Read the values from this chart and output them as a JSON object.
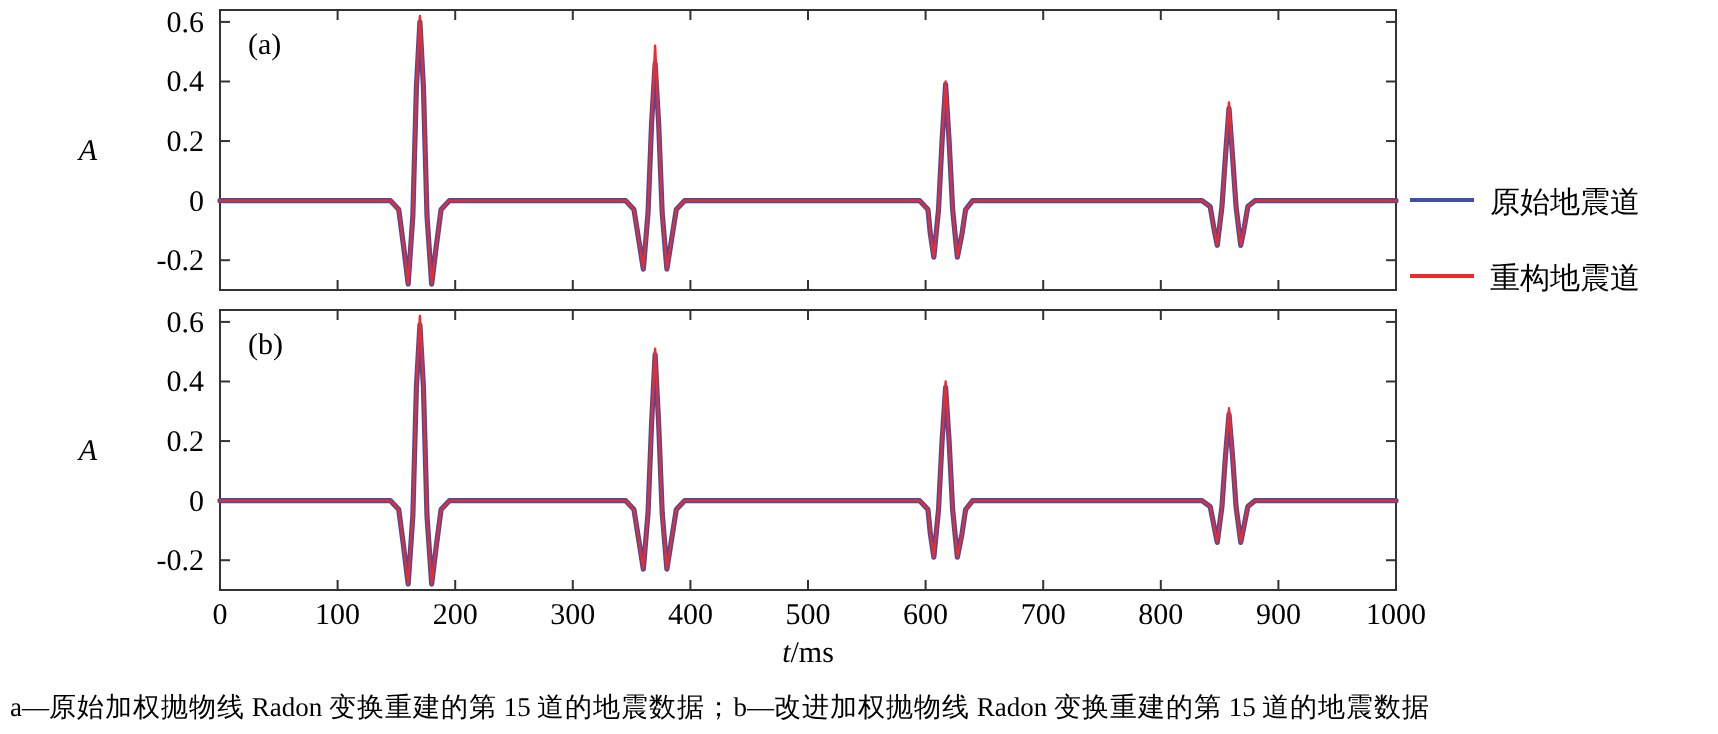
{
  "chart_data": [
    {
      "type": "line",
      "title": "(a)",
      "ylabel": "*A*",
      "legend": "right",
      "tick_labels": "y",
      "x": [
        0,
        145,
        152,
        156,
        160,
        164,
        167,
        170,
        173,
        176,
        180,
        184,
        188,
        195,
        345,
        352,
        356,
        360,
        364,
        367,
        370,
        373,
        376,
        380,
        384,
        388,
        395,
        595,
        602,
        604,
        607,
        611,
        614,
        617,
        620,
        623,
        627,
        631,
        634,
        640,
        835,
        842,
        845,
        848,
        852,
        855,
        858,
        861,
        864,
        868,
        871,
        874,
        880,
        1000
      ],
      "xlim": [
        0,
        1000
      ],
      "xticks": [
        0,
        100,
        200,
        300,
        400,
        500,
        600,
        700,
        800,
        900,
        1000
      ],
      "ylim": [
        -0.3,
        0.64
      ],
      "yticks": [
        -0.2,
        0,
        0.2,
        0.4,
        0.6
      ],
      "series": [
        {
          "name": "原始地震道",
          "color": "#3f4fa8",
          "values": [
            0,
            0,
            -0.03,
            -0.15,
            -0.28,
            -0.05,
            0.38,
            0.6,
            0.38,
            -0.05,
            -0.28,
            -0.15,
            -0.03,
            0,
            0,
            -0.03,
            -0.13,
            -0.23,
            -0.04,
            0.26,
            0.46,
            0.26,
            -0.04,
            -0.23,
            -0.13,
            -0.03,
            0,
            0,
            -0.03,
            -0.11,
            -0.19,
            -0.03,
            0.2,
            0.39,
            0.2,
            -0.03,
            -0.19,
            -0.11,
            -0.03,
            0,
            0,
            -0.02,
            -0.09,
            -0.15,
            -0.02,
            0.15,
            0.31,
            0.15,
            -0.02,
            -0.15,
            -0.09,
            -0.02,
            0,
            0
          ]
        },
        {
          "name": "重构地震道",
          "color": "#ee2a2a",
          "values": [
            0,
            0,
            -0.03,
            -0.15,
            -0.28,
            -0.05,
            0.38,
            0.62,
            0.38,
            -0.05,
            -0.28,
            -0.15,
            -0.03,
            0,
            0,
            -0.03,
            -0.13,
            -0.23,
            -0.04,
            0.26,
            0.52,
            0.26,
            -0.04,
            -0.23,
            -0.13,
            -0.03,
            0,
            0,
            -0.03,
            -0.11,
            -0.19,
            -0.03,
            0.2,
            0.4,
            0.2,
            -0.03,
            -0.19,
            -0.11,
            -0.03,
            0,
            0,
            -0.02,
            -0.09,
            -0.15,
            -0.02,
            0.15,
            0.33,
            0.15,
            -0.02,
            -0.15,
            -0.09,
            -0.02,
            0,
            0
          ]
        }
      ]
    },
    {
      "type": "line",
      "title": "(b)",
      "ylabel": "*A*",
      "xlabel": "*t*/ms",
      "annotations": [
        "a—原始加权抛物线 Radon 变换重建的第 15 道的地震数据；b—改进加权抛物线 Radon 变换重建的第 15 道的地震数据"
      ],
      "x": [
        0,
        145,
        152,
        156,
        160,
        164,
        167,
        170,
        173,
        176,
        180,
        184,
        188,
        195,
        345,
        352,
        356,
        360,
        364,
        367,
        370,
        373,
        376,
        380,
        384,
        388,
        395,
        595,
        602,
        604,
        607,
        611,
        614,
        617,
        620,
        623,
        627,
        631,
        634,
        640,
        835,
        842,
        845,
        848,
        852,
        855,
        858,
        861,
        864,
        868,
        871,
        874,
        880,
        1000
      ],
      "xlim": [
        0,
        1000
      ],
      "xticks": [
        0,
        100,
        200,
        300,
        400,
        500,
        600,
        700,
        800,
        900,
        1000
      ],
      "ylim": [
        -0.3,
        0.64
      ],
      "yticks": [
        -0.2,
        0,
        0.2,
        0.4,
        0.6
      ],
      "series": [
        {
          "color": "#3f4fa8",
          "values": [
            0,
            0,
            -0.03,
            -0.15,
            -0.28,
            -0.05,
            0.38,
            0.59,
            0.38,
            -0.05,
            -0.28,
            -0.15,
            -0.03,
            0,
            0,
            -0.03,
            -0.13,
            -0.23,
            -0.04,
            0.26,
            0.49,
            0.26,
            -0.04,
            -0.23,
            -0.13,
            -0.03,
            0,
            0,
            -0.03,
            -0.11,
            -0.19,
            -0.03,
            0.2,
            0.38,
            0.2,
            -0.03,
            -0.19,
            -0.11,
            -0.03,
            0,
            0,
            -0.02,
            -0.08,
            -0.14,
            -0.02,
            0.15,
            0.29,
            0.15,
            -0.02,
            -0.14,
            -0.08,
            -0.02,
            0,
            0
          ]
        },
        {
          "color": "#ee2a2a",
          "values": [
            0,
            0,
            -0.03,
            -0.15,
            -0.28,
            -0.05,
            0.38,
            0.62,
            0.38,
            -0.05,
            -0.28,
            -0.15,
            -0.03,
            0,
            0,
            -0.03,
            -0.13,
            -0.23,
            -0.04,
            0.26,
            0.51,
            0.26,
            -0.04,
            -0.23,
            -0.13,
            -0.03,
            0,
            0,
            -0.03,
            -0.11,
            -0.19,
            -0.03,
            0.2,
            0.4,
            0.2,
            -0.03,
            -0.19,
            -0.11,
            -0.03,
            0,
            0,
            -0.02,
            -0.08,
            -0.14,
            -0.02,
            0.15,
            0.31,
            0.15,
            -0.02,
            -0.14,
            -0.08,
            -0.02,
            0,
            0
          ]
        }
      ]
    }
  ]
}
